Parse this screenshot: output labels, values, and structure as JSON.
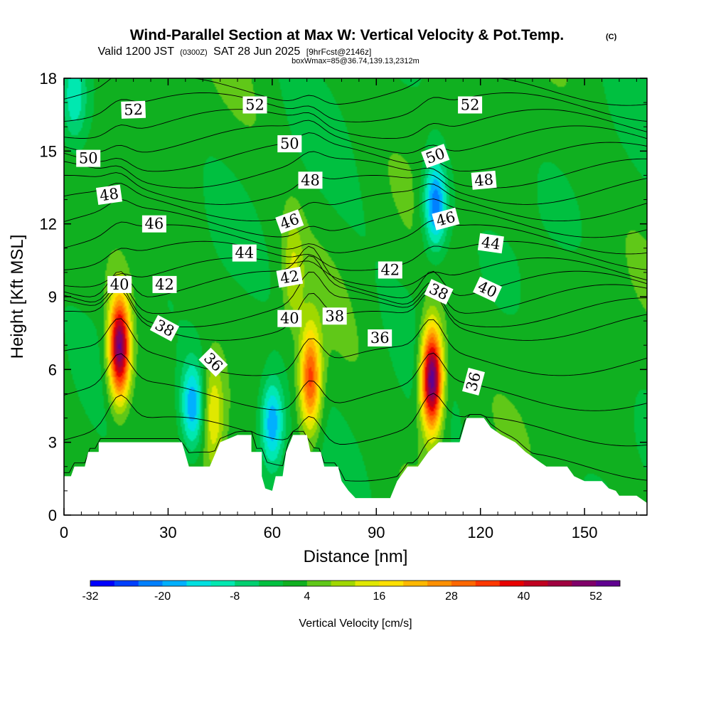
{
  "header": {
    "title": "Wind-Parallel Section at Max W: Vertical Velocity & Pot.Temp.",
    "copyright": "(C)",
    "valid_prefix": "Valid 1200 JST",
    "valid_zulu": "(0300Z)",
    "valid_date": "SAT 28 Jun 2025",
    "forecast": "[9hrFcst@2146z]",
    "boxline": "boxWmax=85@36.74,139.13,2312m"
  },
  "chart_data": {
    "type": "heatmap",
    "xlabel": "Distance [nm]",
    "ylabel": "Height [Kft MSL]",
    "xlim": [
      0,
      168
    ],
    "ylim": [
      0,
      18
    ],
    "x_ticks": [
      "0",
      "30",
      "60",
      "90",
      "120",
      "150"
    ],
    "y_ticks": [
      "0",
      "3",
      "6",
      "9",
      "12",
      "15",
      "18"
    ],
    "colorbar": {
      "label": "Vertical Velocity [cm/s]",
      "ticks": [
        "-32",
        "-20",
        "-8",
        "4",
        "16",
        "28",
        "40",
        "52"
      ],
      "min": -32,
      "step": 4,
      "colors": [
        "#0000ff",
        "#0040ff",
        "#0080ff",
        "#00b0ff",
        "#00e0e0",
        "#00e8b0",
        "#00d070",
        "#00c040",
        "#10b020",
        "#60c818",
        "#a0d800",
        "#e0e800",
        "#ffe000",
        "#ffb800",
        "#ff9000",
        "#ff6800",
        "#ff3800",
        "#e80000",
        "#c00020",
        "#a00040",
        "#80006a",
        "#600090"
      ]
    },
    "terrain_kft": [
      [
        0,
        1.6
      ],
      [
        2,
        1.6
      ],
      [
        3,
        2.0
      ],
      [
        6,
        2.0
      ],
      [
        7,
        2.6
      ],
      [
        10,
        2.6
      ],
      [
        10,
        3.0
      ],
      [
        34,
        3.0
      ],
      [
        36,
        2.0
      ],
      [
        42,
        2.0
      ],
      [
        45,
        3.0
      ],
      [
        50,
        3.3
      ],
      [
        54,
        3.3
      ],
      [
        54,
        2.6
      ],
      [
        57,
        2.6
      ],
      [
        57,
        1.6
      ],
      [
        58,
        1.1
      ],
      [
        60,
        1.0
      ],
      [
        61,
        1.6
      ],
      [
        63,
        1.6
      ],
      [
        64,
        2.6
      ],
      [
        66,
        3.3
      ],
      [
        70,
        3.3
      ],
      [
        71,
        2.6
      ],
      [
        74,
        2.6
      ],
      [
        75,
        2.0
      ],
      [
        79,
        2.0
      ],
      [
        80,
        1.4
      ],
      [
        82,
        1.0
      ],
      [
        84,
        0.7
      ],
      [
        90,
        0.7
      ],
      [
        94,
        0.7
      ],
      [
        96,
        1.4
      ],
      [
        99,
        2.0
      ],
      [
        102,
        2.0
      ],
      [
        105,
        2.6
      ],
      [
        108,
        3.0
      ],
      [
        114,
        3.0
      ],
      [
        116,
        4.0
      ],
      [
        121,
        4.0
      ],
      [
        123,
        3.6
      ],
      [
        126,
        3.3
      ],
      [
        130,
        3.0
      ],
      [
        133,
        2.6
      ],
      [
        136,
        2.3
      ],
      [
        139,
        2.0
      ],
      [
        145,
        2.0
      ],
      [
        147,
        1.6
      ],
      [
        150,
        1.4
      ],
      [
        155,
        1.4
      ],
      [
        157,
        1.1
      ],
      [
        159,
        1.0
      ],
      [
        160,
        0.8
      ],
      [
        165,
        0.8
      ],
      [
        168,
        0.5
      ]
    ],
    "updrafts": [
      {
        "x": 16,
        "z": 6.9,
        "w": 52
      },
      {
        "x": 71,
        "z": 5.6,
        "w": 33
      },
      {
        "x": 106,
        "z": 5.6,
        "w": 56
      },
      {
        "x": 43,
        "z": 4.2,
        "w": 14
      },
      {
        "x": 66,
        "z": 10.0,
        "w": 10
      }
    ],
    "downdrafts": [
      {
        "x": 37,
        "z": 4.5,
        "w": -22
      },
      {
        "x": 60,
        "z": 3.8,
        "w": -22
      },
      {
        "x": 107,
        "z": 12.8,
        "w": -26
      },
      {
        "x": 3,
        "z": 17.2,
        "w": -12
      }
    ],
    "theta_levels": [
      34,
      35,
      36,
      37,
      38,
      39,
      40,
      41,
      42,
      43,
      44,
      45,
      46,
      47,
      48,
      49,
      50,
      51,
      52,
      53
    ],
    "contour_labels": [
      {
        "text": "52",
        "x": 20,
        "z": 16.7,
        "rot": -2
      },
      {
        "text": "52",
        "x": 55,
        "z": 16.9,
        "rot": 0
      },
      {
        "text": "52",
        "x": 117,
        "z": 16.9,
        "rot": 0
      },
      {
        "text": "50",
        "x": 7,
        "z": 14.7,
        "rot": 0
      },
      {
        "text": "50",
        "x": 65,
        "z": 15.3,
        "rot": 0
      },
      {
        "text": "50",
        "x": 107,
        "z": 14.8,
        "rot": -20
      },
      {
        "text": "48",
        "x": 13,
        "z": 13.2,
        "rot": -8
      },
      {
        "text": "48",
        "x": 71,
        "z": 13.8,
        "rot": 0
      },
      {
        "text": "48",
        "x": 121,
        "z": 13.8,
        "rot": -5
      },
      {
        "text": "46",
        "x": 26,
        "z": 12.0,
        "rot": 0
      },
      {
        "text": "46",
        "x": 65,
        "z": 12.1,
        "rot": -20
      },
      {
        "text": "46",
        "x": 110,
        "z": 12.2,
        "rot": -15
      },
      {
        "text": "44",
        "x": 52,
        "z": 10.8,
        "rot": 0
      },
      {
        "text": "44",
        "x": 123,
        "z": 11.2,
        "rot": 8
      },
      {
        "text": "42",
        "x": 29,
        "z": 9.5,
        "rot": 0
      },
      {
        "text": "42",
        "x": 65,
        "z": 9.8,
        "rot": -10
      },
      {
        "text": "42",
        "x": 94,
        "z": 10.1,
        "rot": 0
      },
      {
        "text": "40",
        "x": 16,
        "z": 9.5,
        "rot": 0
      },
      {
        "text": "40",
        "x": 65,
        "z": 8.1,
        "rot": 0
      },
      {
        "text": "40",
        "x": 122,
        "z": 9.3,
        "rot": 25
      },
      {
        "text": "38",
        "x": 29,
        "z": 7.7,
        "rot": 28
      },
      {
        "text": "38",
        "x": 78,
        "z": 8.2,
        "rot": 0
      },
      {
        "text": "38",
        "x": 108,
        "z": 9.2,
        "rot": 25
      },
      {
        "text": "36",
        "x": 43,
        "z": 6.3,
        "rot": 45
      },
      {
        "text": "36",
        "x": 91,
        "z": 7.3,
        "rot": 0
      },
      {
        "text": "36",
        "x": 118,
        "z": 5.5,
        "rot": -75
      }
    ]
  }
}
